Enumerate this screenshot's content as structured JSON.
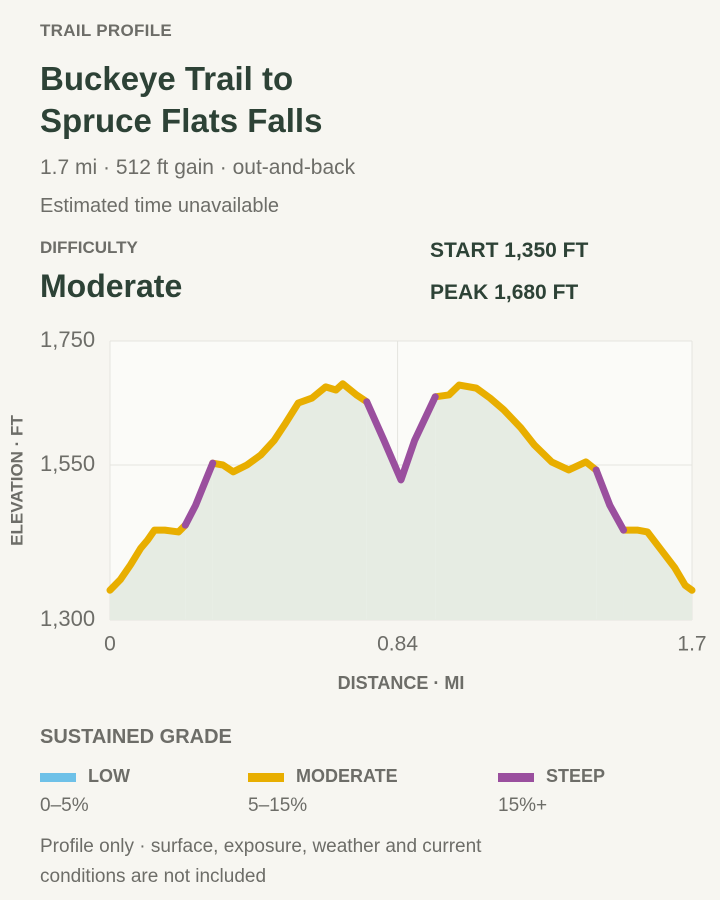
{
  "header": {
    "eyebrow": "TRAIL PROFILE",
    "title": "Buckeye Trail to Spruce Flats Falls",
    "meta": "1.7 mi · 512 ft gain · out-and-back",
    "time": "Estimated time unavailable"
  },
  "difficulty": {
    "label": "DIFFICULTY",
    "value": "Moderate"
  },
  "stats": {
    "start": "START 1,350 FT",
    "peak": "PEAK 1,680 FT"
  },
  "chart_data": {
    "type": "line",
    "xlabel": "DISTANCE · MI",
    "ylabel": "ELEVATION · FT",
    "x": [
      0,
      0.03,
      0.06,
      0.09,
      0.11,
      0.13,
      0.16,
      0.2,
      0.22,
      0.25,
      0.28,
      0.3,
      0.33,
      0.36,
      0.4,
      0.44,
      0.48,
      0.51,
      0.55,
      0.59,
      0.63,
      0.66,
      0.68,
      0.72,
      0.75,
      0.8,
      0.85,
      0.89,
      0.95,
      0.99,
      1.02,
      1.07,
      1.11,
      1.15,
      1.2,
      1.24,
      1.29,
      1.34,
      1.39,
      1.42,
      1.46,
      1.5,
      1.54,
      1.57,
      1.61,
      1.65,
      1.68,
      1.7
    ],
    "series": [
      {
        "name": "LOW",
        "range": "0–5%",
        "color": "#6ec1e8",
        "values": [
          null,
          null,
          null,
          null,
          null,
          null,
          null,
          null,
          null,
          null,
          null,
          null,
          null,
          null,
          null,
          null,
          null,
          null,
          null,
          null,
          null,
          null,
          null,
          null,
          null,
          null,
          null,
          null,
          null,
          null,
          null,
          null,
          null,
          null,
          null,
          null,
          null,
          null,
          null,
          null,
          null,
          null,
          null,
          null,
          null,
          null,
          null,
          null
        ]
      },
      {
        "name": "MODERATE",
        "range": "5–15%",
        "color": "#e8ae00",
        "values": [
          1348,
          1365,
          1389,
          1416,
          1429,
          1445,
          1445,
          1442,
          1453,
          null,
          null,
          1553,
          1550,
          1539,
          1550,
          1566,
          1590,
          1615,
          1650,
          1658,
          1676,
          1671,
          1681,
          1663,
          1652,
          null,
          null,
          null,
          1660,
          1663,
          1679,
          1674,
          1658,
          1639,
          1610,
          1582,
          1555,
          1542,
          1555,
          1542,
          null,
          1445,
          1445,
          1442,
          1413,
          1384,
          1356,
          1348
        ]
      },
      {
        "name": "STEEP",
        "range": "15%+",
        "color": "#9a4f9e",
        "values": [
          null,
          null,
          null,
          null,
          null,
          null,
          null,
          null,
          1453,
          1485,
          1526,
          1553,
          null,
          null,
          null,
          null,
          null,
          null,
          null,
          null,
          null,
          null,
          null,
          null,
          1652,
          1590,
          1526,
          1590,
          1660,
          null,
          null,
          null,
          null,
          null,
          null,
          null,
          null,
          null,
          null,
          1542,
          1485,
          1445,
          null,
          null,
          null,
          null,
          null,
          null
        ]
      }
    ],
    "xlim": [
      0,
      1.7
    ],
    "xticks": [
      0,
      0.84,
      1.7
    ],
    "ylim": [
      1300,
      1750
    ],
    "yticks": [
      {
        "value": 1300,
        "label": "1,300"
      },
      {
        "value": 1550,
        "label": "1,550"
      },
      {
        "value": 1750,
        "label": "1,750"
      }
    ],
    "grid": true,
    "area_color": "#e6ece3"
  },
  "legend_title": "SUSTAINED GRADE",
  "footnote": "Profile only · surface, exposure, weather and current conditions are not included"
}
